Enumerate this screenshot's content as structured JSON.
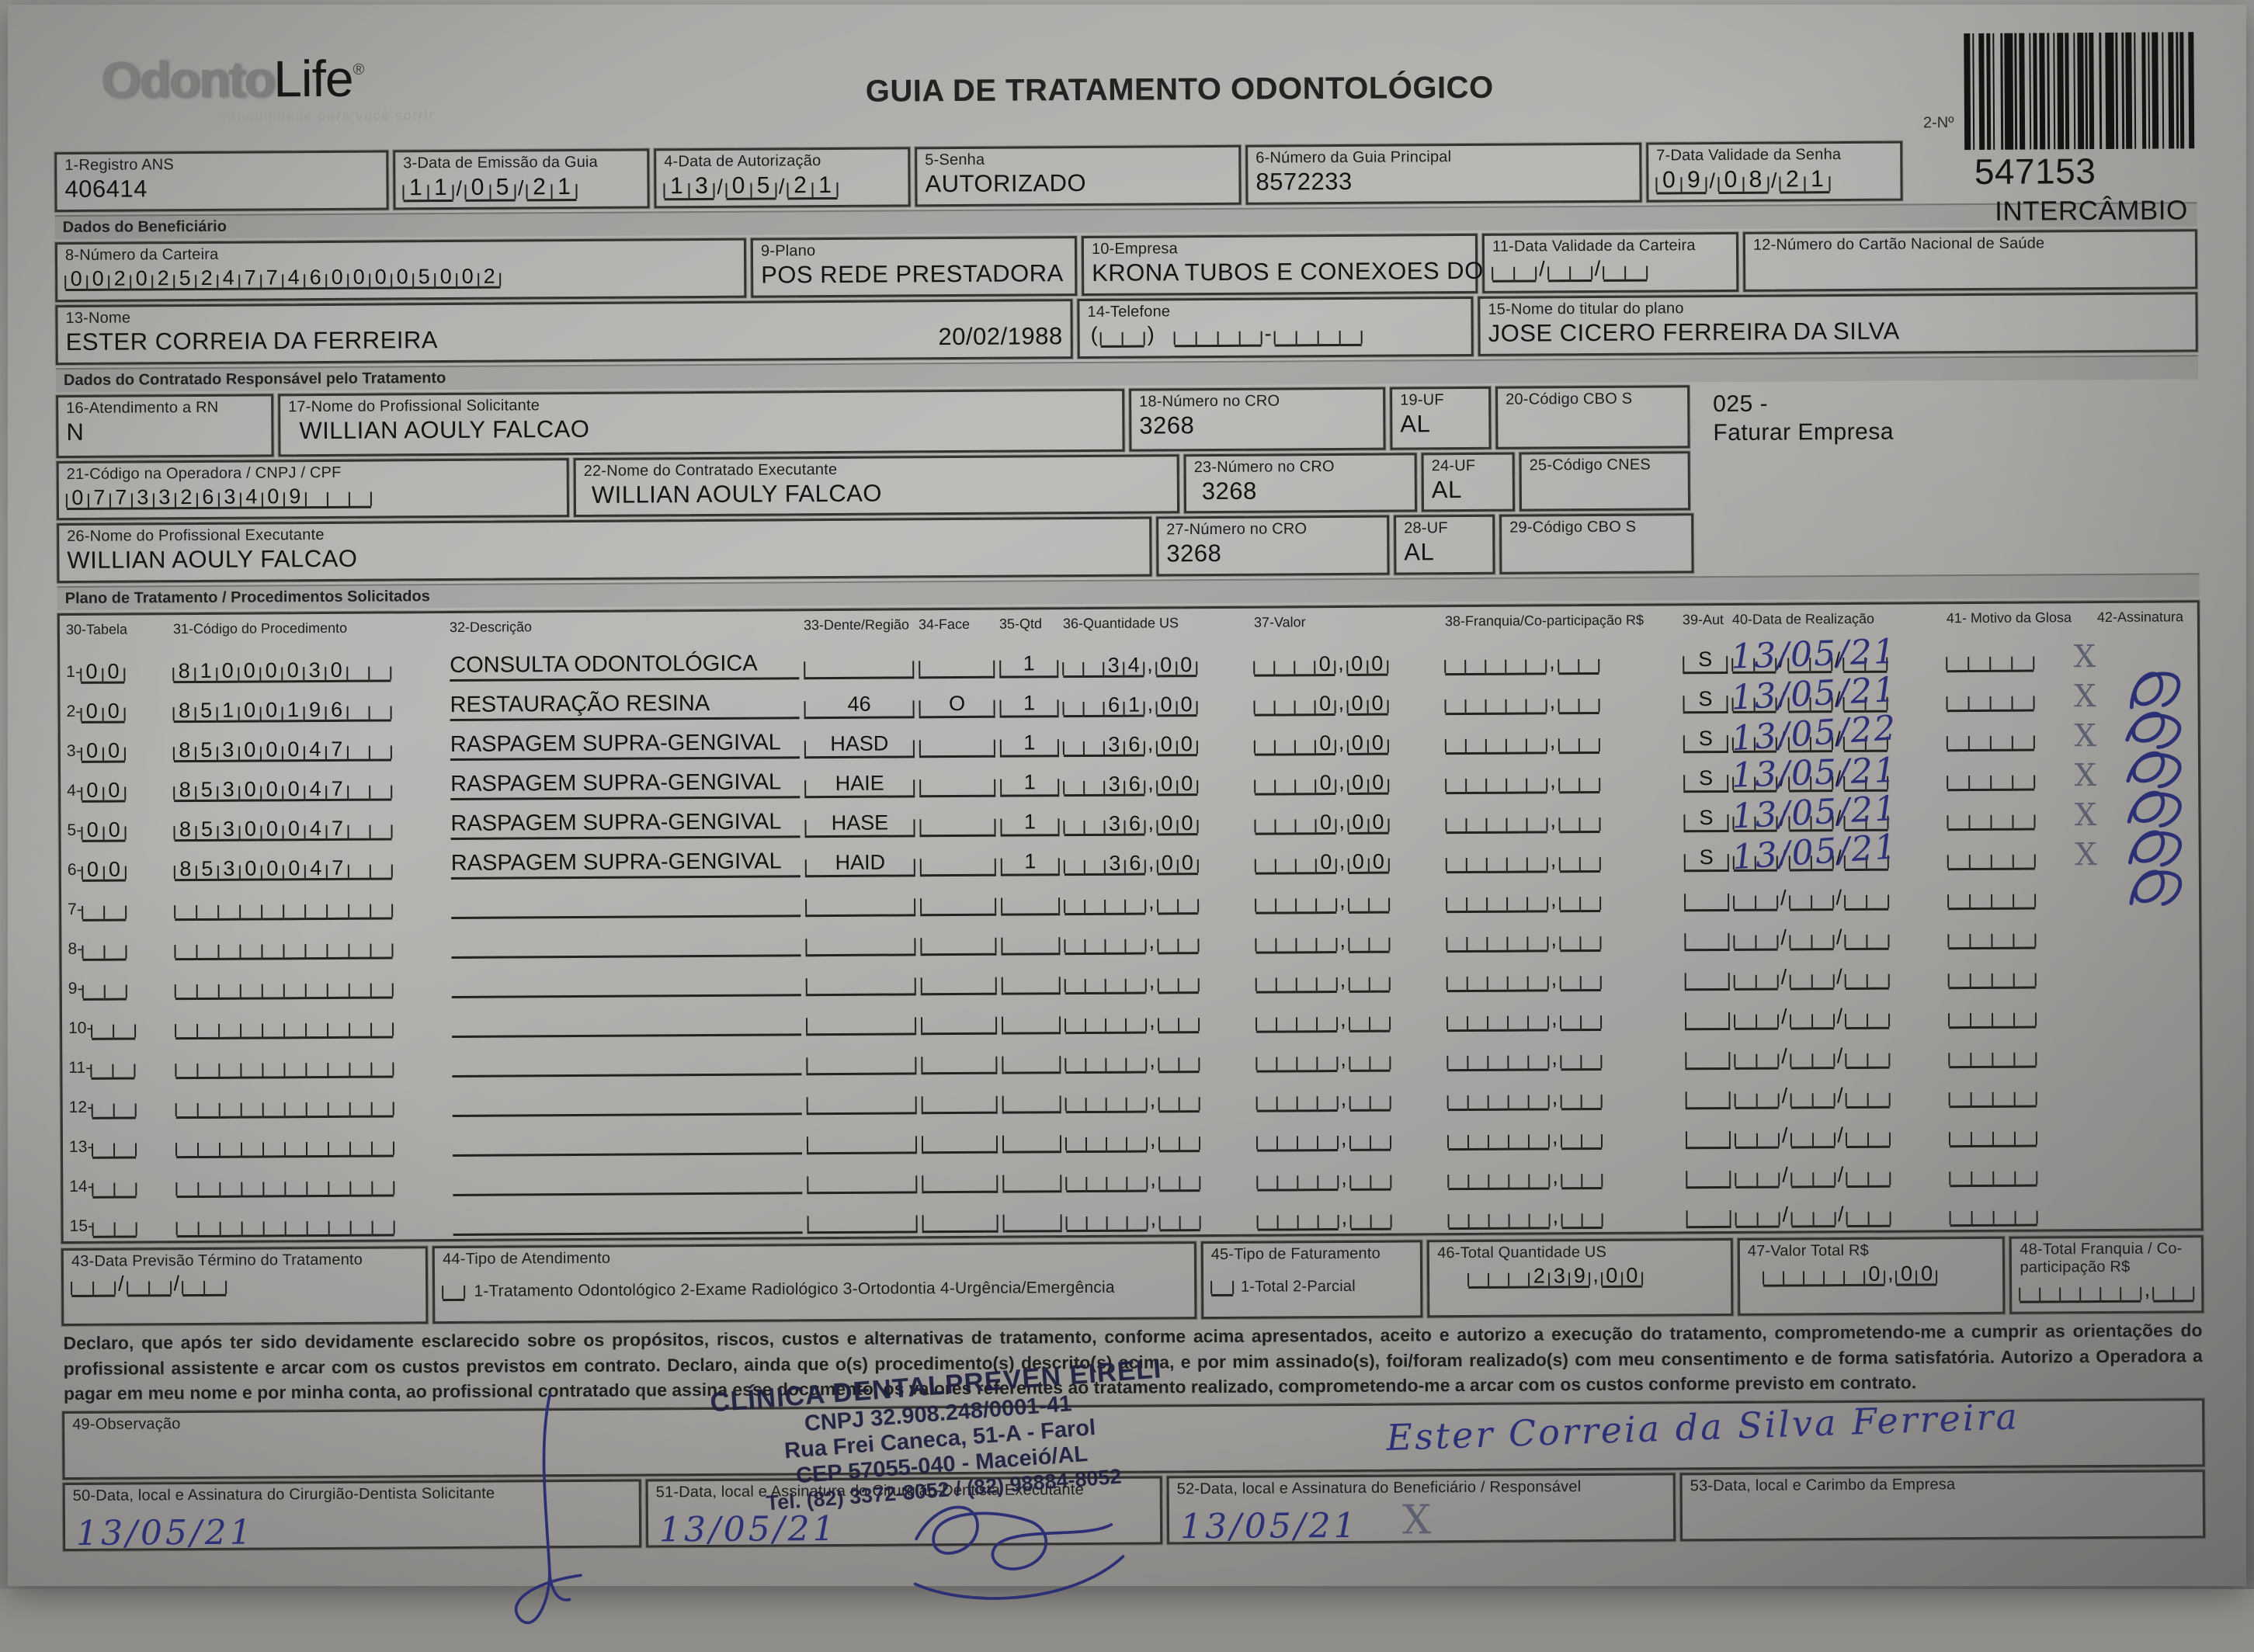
{
  "meta": {
    "title": "GUIA DE TRATAMENTO ODONTOLÓGICO",
    "barcode_label": "2-Nº",
    "guide_number": "547153",
    "guide_type": "INTERCÂMBIO"
  },
  "logo": {
    "odonto": "Odonto",
    "life": "Life",
    "reg": "®",
    "tagline": "tranquilidade para você sorrir"
  },
  "sections": {
    "beneficiario": "Dados do Beneficiário",
    "contratado": "Dados do Contratado Responsável pelo Tratamento",
    "plano": "Plano de Tratamento / Procedimentos Solicitados"
  },
  "header_fields": {
    "registro_ans": {
      "label": "1-Registro ANS",
      "value": "406414"
    },
    "data_emissao": {
      "label": "3-Data de Emissão da Guia",
      "value": "11/05/21"
    },
    "data_autorizacao": {
      "label": "4-Data de Autorização",
      "value": "13/05/21"
    },
    "senha": {
      "label": "5-Senha",
      "value": "AUTORIZADO"
    },
    "numero_guia_principal": {
      "label": "6-Número da Guia Principal",
      "value": "8572233"
    },
    "data_validade_senha": {
      "label": "7-Data Validade da Senha",
      "value": "09/08/21"
    }
  },
  "beneficiario": {
    "numero_carteira": {
      "label": "8-Número da Carteira",
      "value": "00202524774600005002"
    },
    "plano": {
      "label": "9-Plano",
      "value": "POS REDE PRESTADORA"
    },
    "empresa": {
      "label": "10-Empresa",
      "value": "KRONA TUBOS E CONEXOES DO"
    },
    "validade_carteira": {
      "label": "11-Data Validade da Carteira",
      "value": ""
    },
    "cartao_nacional": {
      "label": "12-Número do Cartão Nacional de Saúde",
      "value": ""
    },
    "nome": {
      "label": "13-Nome",
      "value": "ESTER CORREIA DA FERREIRA",
      "nascimento": "20/02/1988"
    },
    "telefone": {
      "label": "14-Telefone",
      "value": ""
    },
    "titular": {
      "label": "15-Nome do titular do plano",
      "value": "JOSE CICERO FERREIRA DA SILVA"
    }
  },
  "contratado": {
    "atendimento_rn": {
      "label": "16-Atendimento a RN",
      "value": "N"
    },
    "prof_solicitante": {
      "label": "17-Nome do Profissional Solicitante",
      "value": "WILLIAN AOULY FALCAO"
    },
    "cro_18": {
      "label": "18-Número no CRO",
      "value": "3268"
    },
    "uf_19": {
      "label": "19-UF",
      "value": "AL"
    },
    "cbo_20": {
      "label": "20-Código CBO S",
      "value": ""
    },
    "faturar_linha1": "025 -",
    "faturar_linha2": "Faturar Empresa",
    "codigo_operadora": {
      "label": "21-Código na Operadora / CNPJ / CPF",
      "value": "07733263409"
    },
    "contratado_executante": {
      "label": "22-Nome do Contratado Executante",
      "value": "WILLIAN AOULY FALCAO"
    },
    "cro_23": {
      "label": "23-Número no CRO",
      "value": "3268"
    },
    "uf_24": {
      "label": "24-UF",
      "value": "AL"
    },
    "cnes_25": {
      "label": "25-Código CNES",
      "value": ""
    },
    "prof_executante": {
      "label": "26-Nome do Profissional Executante",
      "value": "WILLIAN AOULY FALCAO"
    },
    "cro_27": {
      "label": "27-Número no CRO",
      "value": "3268"
    },
    "uf_28": {
      "label": "28-UF",
      "value": "AL"
    },
    "cbo_29": {
      "label": "29-Código CBO S",
      "value": ""
    }
  },
  "procedures": {
    "columns": [
      "30-Tabela",
      "31-Código do Procedimento",
      "32-Descrição",
      "33-Dente/Região",
      "34-Face",
      "35-Qtd",
      "36-Quantidade US",
      "37-Valor",
      "38-Franquia/Co-participação R$",
      "39-Aut",
      "40-Data de Realização",
      "41- Motivo da Glosa",
      "42-Assinatura"
    ],
    "rows": [
      {
        "num": "1",
        "tabela": "00",
        "codigo": "81000030",
        "descricao": "CONSULTA ODONTOLÓGICA",
        "dente": "",
        "face": "",
        "qtd": "1",
        "quantidade_us": "34,00",
        "valor": "0,00",
        "franquia": "",
        "aut": "S",
        "data_realizacao": "13/05/21",
        "glosa_x": "X",
        "assinado": true
      },
      {
        "num": "2",
        "tabela": "00",
        "codigo": "85100196",
        "descricao": "RESTAURAÇÃO RESINA",
        "dente": "46",
        "face": "O",
        "qtd": "1",
        "quantidade_us": "61,00",
        "valor": "0,00",
        "franquia": "",
        "aut": "S",
        "data_realizacao": "13/05/21",
        "glosa_x": "X",
        "assinado": true
      },
      {
        "num": "3",
        "tabela": "00",
        "codigo": "85300047",
        "descricao": "RASPAGEM SUPRA-GENGIVAL",
        "dente": "HASD",
        "face": "",
        "qtd": "1",
        "quantidade_us": "36,00",
        "valor": "0,00",
        "franquia": "",
        "aut": "S",
        "data_realizacao": "13/05/22",
        "glosa_x": "X",
        "assinado": true
      },
      {
        "num": "4",
        "tabela": "00",
        "codigo": "85300047",
        "descricao": "RASPAGEM SUPRA-GENGIVAL",
        "dente": "HAIE",
        "face": "",
        "qtd": "1",
        "quantidade_us": "36,00",
        "valor": "0,00",
        "franquia": "",
        "aut": "S",
        "data_realizacao": "13/05/21",
        "glosa_x": "X",
        "assinado": true
      },
      {
        "num": "5",
        "tabela": "00",
        "codigo": "85300047",
        "descricao": "RASPAGEM SUPRA-GENGIVAL",
        "dente": "HASE",
        "face": "",
        "qtd": "1",
        "quantidade_us": "36,00",
        "valor": "0,00",
        "franquia": "",
        "aut": "S",
        "data_realizacao": "13/05/21",
        "glosa_x": "X",
        "assinado": true
      },
      {
        "num": "6",
        "tabela": "00",
        "codigo": "85300047",
        "descricao": "RASPAGEM SUPRA-GENGIVAL",
        "dente": "HAID",
        "face": "",
        "qtd": "1",
        "quantidade_us": "36,00",
        "valor": "0,00",
        "franquia": "",
        "aut": "S",
        "data_realizacao": "13/05/21",
        "glosa_x": "X",
        "assinado": true
      }
    ],
    "empty_rows": [
      "7",
      "8",
      "9",
      "10",
      "11",
      "12",
      "13",
      "14",
      "15"
    ]
  },
  "totals": {
    "previsao_termino": {
      "label": "43-Data Previsão Término do Tratamento",
      "value": ""
    },
    "tipo_atendimento": {
      "label": "44-Tipo de Atendimento",
      "options": "1-Tratamento Odontológico  2-Exame Radiológico  3-Ortodontia  4-Urgência/Emergência",
      "value": ""
    },
    "tipo_faturamento": {
      "label": "45-Tipo de Faturamento",
      "options": "1-Total  2-Parcial",
      "value": ""
    },
    "total_quantidade_us": {
      "label": "46-Total Quantidade US",
      "value": "239,00"
    },
    "valor_total": {
      "label": "47-Valor Total R$",
      "value": "0,00"
    },
    "total_franquia": {
      "label": "48-Total Franquia / Co-participação R$",
      "value": ""
    }
  },
  "declaration": "Declaro, que após ter sido devidamente esclarecido sobre os propósitos, riscos, custos e alternativas de tratamento, conforme acima apresentados, aceito e autorizo a execução do tratamento, comprometendo-me a cumprir as orientações do profissional assistente e arcar com os custos previstos em contrato. Declaro, ainda que o(s) procedimento(s) descrito(s) acima, e por mim assinado(s), foi/foram realizado(s) com meu consentimento e de forma satisfatória. Autorizo a Operadora a pagar em meu nome e por minha conta, ao profissional contratado que assina esse documento, os valores referentes ao tratamento realizado, comprometendo-me a arcar com os custos conforme previsto em contrato.",
  "observacao": {
    "label": "49-Observação"
  },
  "stamp": {
    "line1": "CLÍNICA DENTALPREVEN EIRELI",
    "line2": "CNPJ 32.908.248/0001-41",
    "line3": "Rua Frei Caneca, 51-A - Farol",
    "line4": "CEP 57055-040 - Maceió/AL",
    "line5": "Tel. (82) 3372-8052 / (82) 98884-8052"
  },
  "signatures": {
    "solicitante": {
      "label": "50-Data, local e Assinatura do Cirurgião-Dentista Solicitante",
      "date": "13/05/21"
    },
    "executante": {
      "label": "51-Data, local e Assinatura do Cirurgião-Dentista Executante",
      "date": "13/05/21"
    },
    "beneficiario": {
      "label": "52-Data, local e Assinatura do Beneficiário / Responsável",
      "date": "13/05/21",
      "mark": "X",
      "name": "Ester Correia da Silva Ferreira"
    },
    "empresa": {
      "label": "53-Data, local e Carimbo da Empresa"
    }
  }
}
